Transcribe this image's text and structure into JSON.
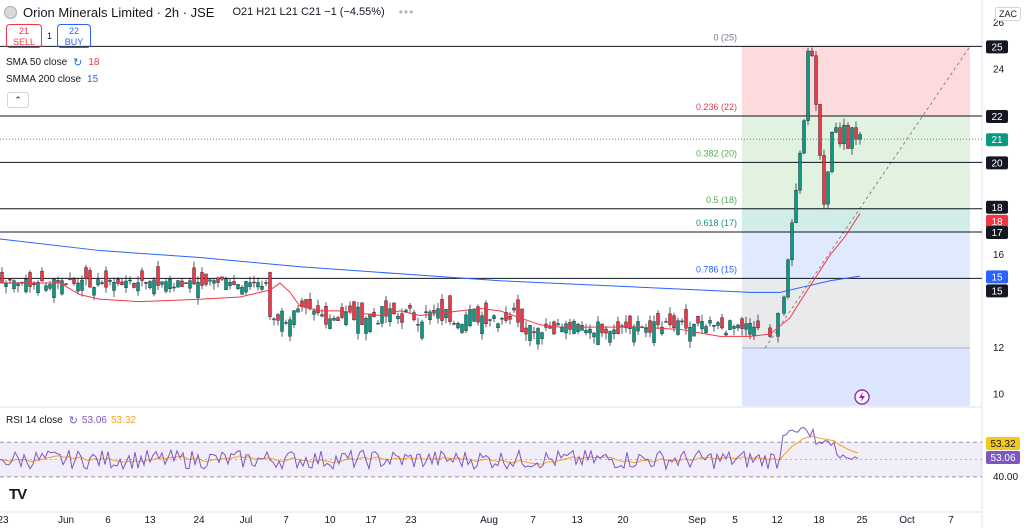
{
  "header": {
    "title": "Orion Minerals Limited · 2h · JSE",
    "ohlc": "O21 H21 L21 C21 −1 (−4.55%)",
    "more": "•••"
  },
  "trade": {
    "sell_price": "21",
    "sell_label": "SELL",
    "spread": "1",
    "buy_price": "22",
    "buy_label": "BUY"
  },
  "indicators": {
    "sma_label": "SMA 50 close",
    "sma_value": "18",
    "smma_label": "SMMA 200 close",
    "smma_value": "15",
    "collapse": "⌃"
  },
  "rsi": {
    "label": "RSI 14 close",
    "value": "53.06",
    "ma_value": "53.32"
  },
  "currency": "ZAC",
  "tv_logo": "TV",
  "colors": {
    "up": "#089981",
    "down": "#f23645",
    "sma": "#f23645",
    "smma": "#2962ff",
    "rsi": "#7e57c2",
    "rsi_ma": "#f7a21b"
  },
  "chart_data": {
    "type": "candlestick",
    "timeframe": "2h",
    "y_axis": {
      "ylim": [
        9.5,
        27
      ],
      "ticks": [
        "26",
        "24",
        "20",
        "16",
        "12",
        "10"
      ]
    },
    "x_axis": {
      "ticks": [
        "23",
        "Jun",
        "6",
        "13",
        "24",
        "Jul",
        "7",
        "10",
        "17",
        "23",
        "Aug",
        "7",
        "13",
        "20",
        "Sep",
        "5",
        "12",
        "18",
        "25",
        "Oct",
        "7"
      ]
    },
    "price_tags": [
      {
        "value": "25",
        "color": "#131722"
      },
      {
        "value": "22",
        "color": "#131722"
      },
      {
        "value": "21",
        "color": "#089981"
      },
      {
        "value": "20",
        "color": "#131722"
      },
      {
        "value": "18",
        "color": "#131722"
      },
      {
        "value": "18",
        "color": "#f23645"
      },
      {
        "value": "17",
        "color": "#131722"
      },
      {
        "value": "15",
        "color": "#2962ff"
      },
      {
        "value": "15",
        "color": "#131722"
      }
    ],
    "fib_levels": [
      {
        "ratio": "0",
        "label": "0 (25)",
        "price": 25,
        "color": "#787b86"
      },
      {
        "ratio": "0.236",
        "label": "0.236 (22)",
        "price": 22,
        "color": "#f23645"
      },
      {
        "ratio": "0.382",
        "label": "0.382 (20)",
        "price": 20,
        "color": "#4caf50"
      },
      {
        "ratio": "0.5",
        "label": "0.5 (18)",
        "price": 18,
        "color": "#4caf50"
      },
      {
        "ratio": "0.618",
        "label": "0.618 (17)",
        "price": 17,
        "color": "#089981"
      },
      {
        "ratio": "0.786",
        "label": "0.786 (15)",
        "price": 15,
        "color": "#2962ff"
      },
      {
        "ratio": "1",
        "label": "",
        "price": 12,
        "color": "#787b86"
      }
    ],
    "horizontal_lines": [
      25,
      22,
      20,
      18,
      17,
      15
    ],
    "last_price": 21,
    "sma_50": [
      [
        0,
        14.8
      ],
      [
        40,
        14.8
      ],
      [
        60,
        14.8
      ],
      [
        80,
        14.3
      ],
      [
        100,
        14.1
      ],
      [
        140,
        14.0
      ],
      [
        200,
        14.1
      ],
      [
        240,
        14.2
      ],
      [
        270,
        14.5
      ],
      [
        280,
        14.8
      ],
      [
        290,
        14.4
      ],
      [
        300,
        13.8
      ],
      [
        320,
        13.6
      ],
      [
        340,
        13.6
      ],
      [
        360,
        13.5
      ],
      [
        380,
        13.4
      ],
      [
        400,
        13.6
      ],
      [
        420,
        13.4
      ],
      [
        440,
        13.5
      ],
      [
        460,
        13.6
      ],
      [
        480,
        13.7
      ],
      [
        500,
        13.6
      ],
      [
        520,
        13.3
      ],
      [
        540,
        13.0
      ],
      [
        560,
        12.9
      ],
      [
        600,
        12.9
      ],
      [
        640,
        12.9
      ],
      [
        680,
        12.8
      ],
      [
        720,
        12.5
      ],
      [
        750,
        12.5
      ],
      [
        770,
        12.6
      ],
      [
        790,
        13.3
      ],
      [
        800,
        14.0
      ],
      [
        815,
        15.0
      ],
      [
        830,
        16.0
      ],
      [
        845,
        16.8
      ],
      [
        860,
        17.8
      ]
    ],
    "smma_200": [
      [
        0,
        16.7
      ],
      [
        100,
        16.2
      ],
      [
        200,
        15.9
      ],
      [
        300,
        15.5
      ],
      [
        400,
        15.2
      ],
      [
        500,
        14.9
      ],
      [
        600,
        14.7
      ],
      [
        700,
        14.5
      ],
      [
        750,
        14.4
      ],
      [
        780,
        14.4
      ],
      [
        800,
        14.6
      ],
      [
        830,
        14.9
      ],
      [
        860,
        15.1
      ]
    ],
    "rsi_ylim": [
      0,
      100
    ],
    "rsi_levels": {
      "upper": 70,
      "lower": 30
    },
    "rsi_tick": "40.00",
    "price_bands": {
      "high": [
        24.5,
        25
      ],
      "mid": [
        20,
        21
      ],
      "low": [
        12,
        12.5
      ]
    }
  }
}
